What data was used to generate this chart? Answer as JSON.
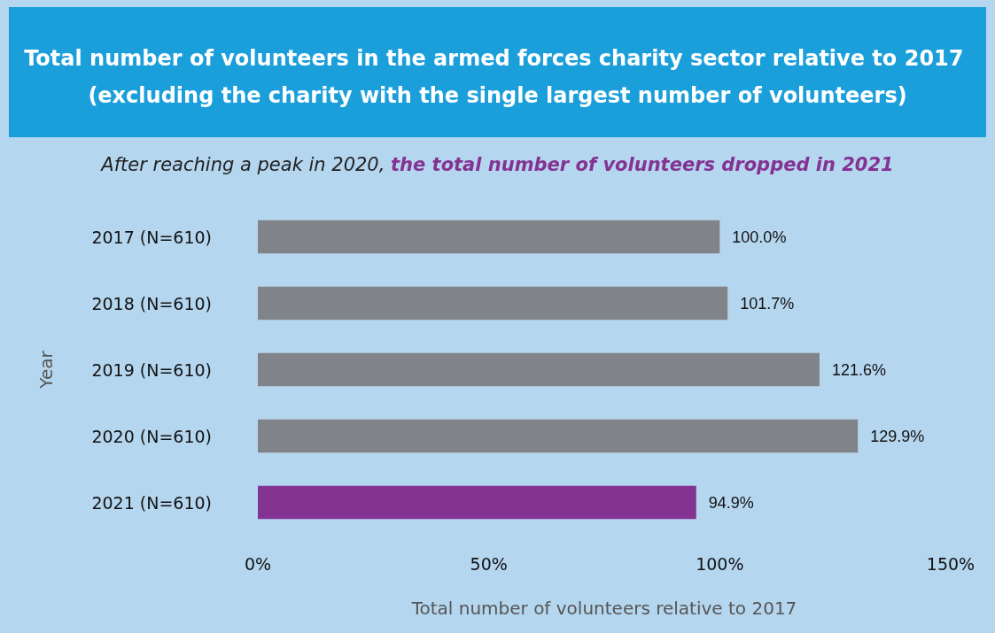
{
  "chart_data": {
    "type": "bar",
    "orientation": "horizontal",
    "title": "Total number of volunteers in the armed forces charity sector relative to 2017 (excluding the charity with the single largest number of volunteers)",
    "subtitle": "After reaching a peak in 2020, the total number of volunteers dropped in 2021",
    "xlabel": "Total number of volunteers relative to 2017",
    "ylabel": "Year",
    "categories": [
      "2017 (N=610)",
      "2018 (N=610)",
      "2019 (N=610)",
      "2020 (N=610)",
      "2021 (N=610)"
    ],
    "values": [
      100.0,
      101.7,
      121.6,
      129.9,
      94.9
    ],
    "value_labels": [
      "100.0%",
      "101.7%",
      "121.6%",
      "129.9%",
      "94.9%"
    ],
    "colors": [
      "#808489",
      "#808489",
      "#808489",
      "#808489",
      "#843393"
    ],
    "xlim": [
      0,
      150
    ],
    "xticks": [
      {
        "value": 0,
        "label": "0%"
      },
      {
        "value": 50,
        "label": "50%"
      },
      {
        "value": 100,
        "label": "100%"
      },
      {
        "value": 150,
        "label": "150%"
      }
    ],
    "grid": false
  }
}
